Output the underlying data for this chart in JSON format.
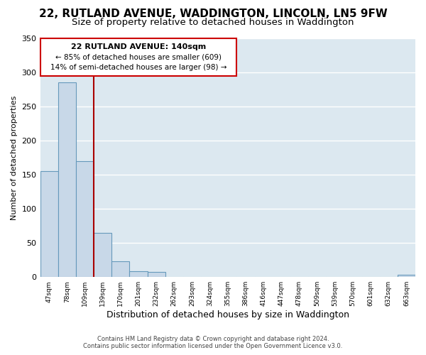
{
  "title": "22, RUTLAND AVENUE, WADDINGTON, LINCOLN, LN5 9FW",
  "subtitle": "Size of property relative to detached houses in Waddington",
  "xlabel": "Distribution of detached houses by size in Waddington",
  "ylabel": "Number of detached properties",
  "bin_labels": [
    "47sqm",
    "78sqm",
    "109sqm",
    "139sqm",
    "170sqm",
    "201sqm",
    "232sqm",
    "262sqm",
    "293sqm",
    "324sqm",
    "355sqm",
    "386sqm",
    "416sqm",
    "447sqm",
    "478sqm",
    "509sqm",
    "539sqm",
    "570sqm",
    "601sqm",
    "632sqm",
    "663sqm"
  ],
  "bar_heights": [
    155,
    285,
    170,
    65,
    23,
    9,
    7,
    0,
    0,
    0,
    0,
    0,
    0,
    0,
    0,
    0,
    0,
    0,
    0,
    0,
    3
  ],
  "bar_color": "#c8d8e8",
  "bar_edge_color": "#6699bb",
  "vline_color": "#aa0000",
  "annotation_title": "22 RUTLAND AVENUE: 140sqm",
  "annotation_line1": "← 85% of detached houses are smaller (609)",
  "annotation_line2": "14% of semi-detached houses are larger (98) →",
  "annotation_box_edge": "#cc0000",
  "ylim": [
    0,
    350
  ],
  "yticks": [
    0,
    50,
    100,
    150,
    200,
    250,
    300,
    350
  ],
  "figure_bg": "#ffffff",
  "axes_bg": "#dce8f0",
  "grid_color": "#ffffff",
  "title_fontsize": 11,
  "subtitle_fontsize": 9.5,
  "footer1": "Contains HM Land Registry data © Crown copyright and database right 2024.",
  "footer2": "Contains public sector information licensed under the Open Government Licence v3.0."
}
